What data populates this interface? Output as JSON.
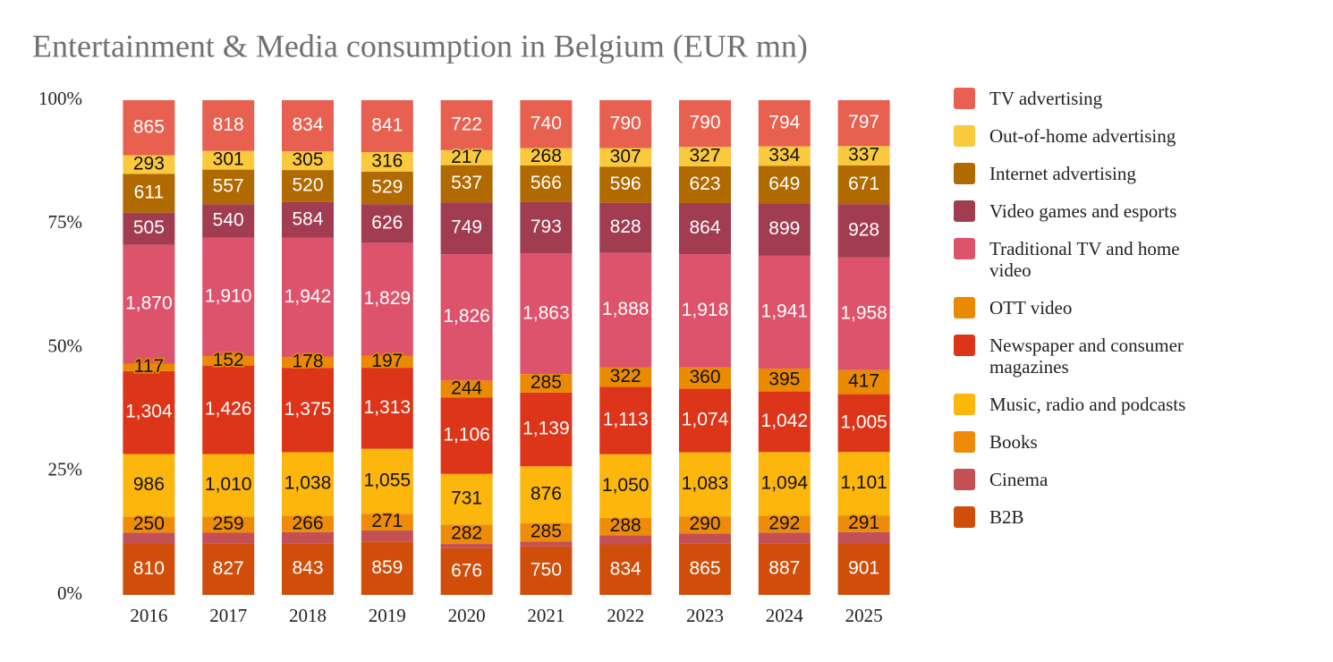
{
  "chart_data": {
    "type": "stacked-percent-bar",
    "title": "Entertainment & Media consumption in Belgium (EUR mn)",
    "categories": [
      "2016",
      "2017",
      "2018",
      "2019",
      "2020",
      "2021",
      "2022",
      "2023",
      "2024",
      "2025"
    ],
    "ylim": [
      0,
      100
    ],
    "yticks": [
      {
        "value": 0,
        "label": "0%"
      },
      {
        "value": 25,
        "label": "25%"
      },
      {
        "value": 50,
        "label": "50%"
      },
      {
        "value": 75,
        "label": "75%"
      },
      {
        "value": 100,
        "label": "100%"
      }
    ],
    "legend": "right",
    "series": [
      {
        "name": "B2B",
        "color": "#d14e0a",
        "values": [
          810,
          827,
          843,
          859,
          676,
          750,
          834,
          865,
          887,
          901
        ],
        "value_labels": [
          "810",
          "827",
          "843",
          "859",
          "676",
          "750",
          "834",
          "865",
          "887",
          "901"
        ]
      },
      {
        "name": "Cinema",
        "color": "#c25054",
        "values": [
          170,
          175,
          180,
          185,
          60,
          75,
          150,
          175,
          185,
          190
        ]
      },
      {
        "name": "Books",
        "color": "#ee8c0a",
        "values": [
          250,
          259,
          266,
          271,
          282,
          285,
          288,
          290,
          292,
          291
        ],
        "value_labels": [
          "250",
          "259",
          "266",
          "271",
          "282",
          "285",
          "288",
          "290",
          "292",
          "291"
        ]
      },
      {
        "name": "Music, radio and podcasts",
        "color": "#fdb60c",
        "values": [
          986,
          1010,
          1038,
          1055,
          731,
          876,
          1050,
          1083,
          1094,
          1101
        ],
        "value_labels": [
          "986",
          "1,010",
          "1,038",
          "1,055",
          "731",
          "876",
          "1,050",
          "1,083",
          "1,094",
          "1,101"
        ]
      },
      {
        "name": "Newspaper and consumer magazines",
        "color": "#dd3519",
        "values": [
          1304,
          1426,
          1375,
          1313,
          1106,
          1139,
          1113,
          1074,
          1042,
          1005
        ],
        "value_labels": [
          "1,304",
          "1,426",
          "1,375",
          "1,313",
          "1,106",
          "1,139",
          "1,113",
          "1,074",
          "1,042",
          "1,005"
        ]
      },
      {
        "name": "OTT video",
        "color": "#ea8a00",
        "values": [
          117,
          152,
          178,
          197,
          244,
          285,
          322,
          360,
          395,
          417
        ],
        "value_labels": [
          "117",
          "152",
          "178",
          "197",
          "244",
          "285",
          "322",
          "360",
          "395",
          "417"
        ]
      },
      {
        "name": "Traditional TV and home video",
        "color": "#de536c",
        "values": [
          1870,
          1910,
          1942,
          1829,
          1826,
          1863,
          1888,
          1918,
          1941,
          1958
        ],
        "value_labels": [
          "1,870",
          "1,910",
          "1,942",
          "1,829",
          "1,826",
          "1,863",
          "1,888",
          "1,918",
          "1,941",
          "1,958"
        ]
      },
      {
        "name": "Video games and esports",
        "color": "#a23c50",
        "values": [
          505,
          540,
          584,
          626,
          749,
          793,
          828,
          864,
          899,
          928
        ],
        "value_labels": [
          "505",
          "540",
          "584",
          "626",
          "749",
          "793",
          "828",
          "864",
          "899",
          "928"
        ]
      },
      {
        "name": "Internet advertising",
        "color": "#b06a00",
        "values": [
          611,
          557,
          520,
          529,
          537,
          566,
          596,
          623,
          649,
          671
        ],
        "value_labels": [
          "611",
          "557",
          "520",
          "529",
          "537",
          "566",
          "596",
          "623",
          "649",
          "671"
        ]
      },
      {
        "name": "Out-of-home advertising",
        "color": "#fbc93d",
        "values": [
          293,
          301,
          305,
          316,
          217,
          268,
          307,
          327,
          334,
          337
        ],
        "value_labels": [
          "293",
          "301",
          "305",
          "316",
          "217",
          "268",
          "307",
          "327",
          "334",
          "337"
        ]
      },
      {
        "name": "TV advertising",
        "color": "#e8604f",
        "values": [
          865,
          818,
          834,
          841,
          722,
          740,
          790,
          790,
          794,
          797
        ],
        "value_labels": [
          "865",
          "818",
          "834",
          "841",
          "722",
          "740",
          "790",
          "790",
          "794",
          "797"
        ]
      }
    ]
  }
}
